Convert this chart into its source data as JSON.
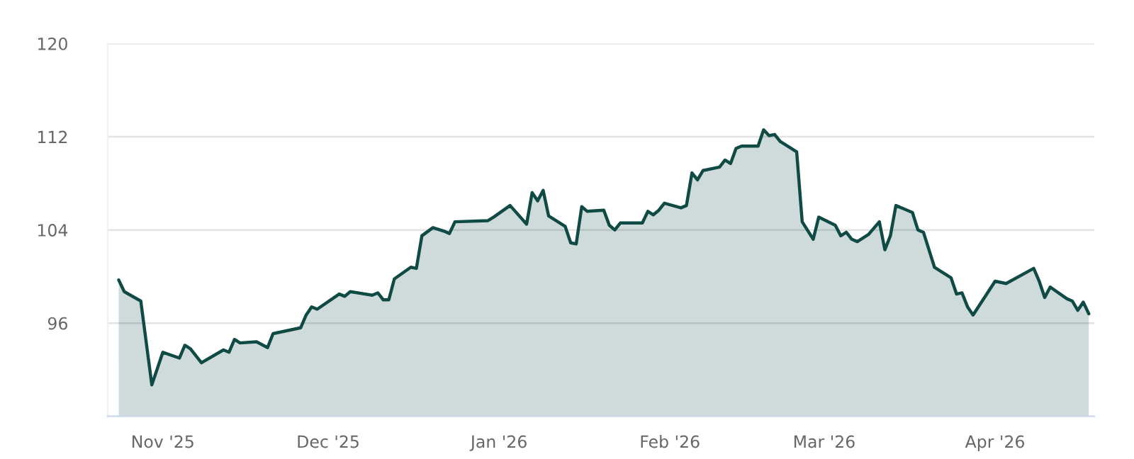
{
  "chart_data": {
    "type": "area",
    "x": [
      "2025-10-24",
      "2025-10-25",
      "2025-10-28",
      "2025-10-30",
      "2025-11-01",
      "2025-11-04",
      "2025-11-05",
      "2025-11-06",
      "2025-11-08",
      "2025-11-12",
      "2025-11-13",
      "2025-11-14",
      "2025-11-15",
      "2025-11-18",
      "2025-11-20",
      "2025-11-21",
      "2025-11-26",
      "2025-11-27",
      "2025-11-28",
      "2025-11-29",
      "2025-12-03",
      "2025-12-04",
      "2025-12-05",
      "2025-12-09",
      "2025-12-10",
      "2025-12-11",
      "2025-12-12",
      "2025-12-13",
      "2025-12-16",
      "2025-12-17",
      "2025-12-18",
      "2025-12-20",
      "2025-12-22",
      "2025-12-23",
      "2025-12-24",
      "2025-12-30",
      "2025-12-31",
      "2026-01-03",
      "2026-01-06",
      "2026-01-07",
      "2026-01-08",
      "2026-01-09",
      "2026-01-10",
      "2026-01-13",
      "2026-01-14",
      "2026-01-15",
      "2026-01-16",
      "2026-01-17",
      "2026-01-20",
      "2026-01-21",
      "2026-01-22",
      "2026-01-23",
      "2026-01-27",
      "2026-01-28",
      "2026-01-29",
      "2026-01-30",
      "2026-01-31",
      "2026-02-03",
      "2026-02-04",
      "2026-02-05",
      "2026-02-06",
      "2026-02-07",
      "2026-02-10",
      "2026-02-11",
      "2026-02-12",
      "2026-02-13",
      "2026-02-14",
      "2026-02-17",
      "2026-02-18",
      "2026-02-19",
      "2026-02-20",
      "2026-02-21",
      "2026-02-24",
      "2026-02-25",
      "2026-02-27",
      "2026-02-28",
      "2026-03-03",
      "2026-03-04",
      "2026-03-05",
      "2026-03-06",
      "2026-03-07",
      "2026-03-09",
      "2026-03-11",
      "2026-03-12",
      "2026-03-13",
      "2026-03-14",
      "2026-03-17",
      "2026-03-18",
      "2026-03-19",
      "2026-03-21",
      "2026-03-24",
      "2026-03-25",
      "2026-03-26",
      "2026-03-27",
      "2026-03-28",
      "2026-04-01",
      "2026-04-03",
      "2026-04-08",
      "2026-04-09",
      "2026-04-10",
      "2026-04-11",
      "2026-04-14",
      "2026-04-15",
      "2026-04-16",
      "2026-04-17",
      "2026-04-18"
    ],
    "series": [
      {
        "color": "#0f4a45",
        "values": [
          99.7,
          98.7,
          97.9,
          90.7,
          93.5,
          93.0,
          94.1,
          93.8,
          92.6,
          93.7,
          93.5,
          94.6,
          94.3,
          94.4,
          93.9,
          95.1,
          95.6,
          96.7,
          97.4,
          97.2,
          98.5,
          98.3,
          98.7,
          98.4,
          98.6,
          98.0,
          98.0,
          99.8,
          100.8,
          100.7,
          103.5,
          104.2,
          103.9,
          103.7,
          104.7,
          104.8,
          105.1,
          106.1,
          104.5,
          107.2,
          106.5,
          107.4,
          105.2,
          104.3,
          102.9,
          102.8,
          106.0,
          105.6,
          105.7,
          104.4,
          104.0,
          104.6,
          104.6,
          105.6,
          105.3,
          105.7,
          106.3,
          105.9,
          106.1,
          108.9,
          108.3,
          109.1,
          109.4,
          110.0,
          109.7,
          111.0,
          111.2,
          111.2,
          112.6,
          112.1,
          112.2,
          111.6,
          110.7,
          104.7,
          103.2,
          105.1,
          104.4,
          103.5,
          103.8,
          103.2,
          103.0,
          103.6,
          104.7,
          102.3,
          103.5,
          106.1,
          105.5,
          104.0,
          103.8,
          100.8,
          99.9,
          98.5,
          98.6,
          97.4,
          96.7,
          99.6,
          99.4,
          100.7,
          99.6,
          98.2,
          99.1,
          98.1,
          97.9,
          97.1,
          97.8,
          96.8
        ]
      }
    ],
    "xlim": [
      "2025-10-22",
      "2026-04-19"
    ],
    "xticks": [
      {
        "value": "2025-11-01",
        "label": "Nov '25"
      },
      {
        "value": "2025-12-01",
        "label": "Dec '25"
      },
      {
        "value": "2026-01-01",
        "label": "Jan '26"
      },
      {
        "value": "2026-02-01",
        "label": "Feb '26"
      },
      {
        "value": "2026-03-01",
        "label": "Mar '26"
      },
      {
        "value": "2026-04-01",
        "label": "Apr '26"
      }
    ],
    "ylim": [
      88,
      120
    ],
    "yticks": [
      96,
      104,
      112,
      120
    ],
    "grid": "y"
  }
}
